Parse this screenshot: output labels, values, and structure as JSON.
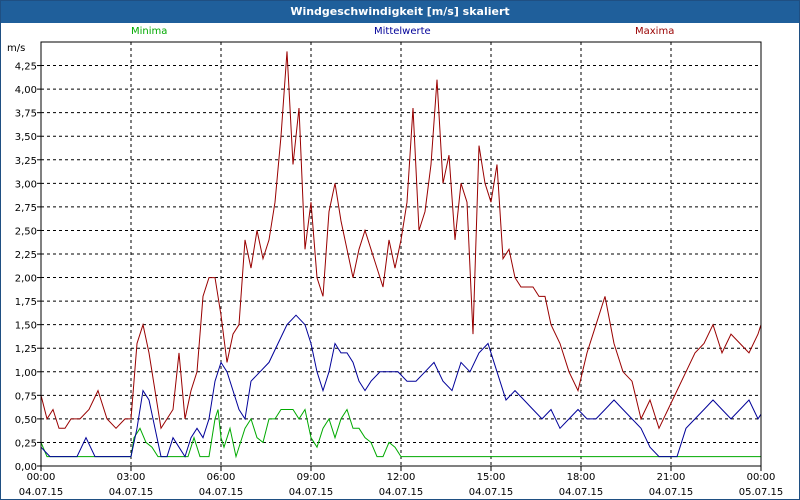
{
  "window": {
    "title": "Windgeschwindigkeit [m/s] skaliert"
  },
  "chart_data": {
    "type": "line",
    "title": "Windgeschwindigkeit [m/s] skaliert",
    "ylabel": "m/s",
    "ylim": [
      0,
      4.5
    ],
    "xlim": [
      0,
      24
    ],
    "yticks": [
      "0,00",
      "0,25",
      "0,50",
      "0,75",
      "1,00",
      "1,25",
      "1,50",
      "1,75",
      "2,00",
      "2,25",
      "2,50",
      "2,75",
      "3,00",
      "3,25",
      "3,50",
      "3,75",
      "4,00",
      "4,25"
    ],
    "xticks": [
      {
        "time": "00:00",
        "date": "04.07.15"
      },
      {
        "time": "03:00",
        "date": "04.07.15"
      },
      {
        "time": "06:00",
        "date": "04.07.15"
      },
      {
        "time": "09:00",
        "date": "04.07.15"
      },
      {
        "time": "12:00",
        "date": "04.07.15"
      },
      {
        "time": "15:00",
        "date": "04.07.15"
      },
      {
        "time": "18:00",
        "date": "04.07.15"
      },
      {
        "time": "21:00",
        "date": "04.07.15"
      },
      {
        "time": "00:00",
        "date": "05.07.15"
      }
    ],
    "grid": true,
    "legend_position": "top",
    "series": [
      {
        "name": "Minima",
        "color": "#00aa00",
        "x": [
          0,
          0.2,
          0.4,
          0.6,
          0.8,
          1,
          1.4,
          1.8,
          2,
          2.2,
          2.4,
          2.6,
          3,
          3.1,
          3.3,
          3.5,
          3.7,
          3.9,
          4.1,
          4.3,
          4.6,
          4.9,
          5.1,
          5.3,
          5.6,
          5.8,
          5.9,
          6,
          6.1,
          6.3,
          6.5,
          6.8,
          7,
          7.2,
          7.4,
          7.6,
          7.8,
          8,
          8.2,
          8.4,
          8.6,
          8.8,
          9,
          9.2,
          9.4,
          9.6,
          9.8,
          10,
          10.2,
          10.4,
          10.6,
          10.8,
          11,
          11.2,
          11.4,
          11.6,
          11.8,
          12,
          12.5,
          13,
          13.5,
          14,
          14.5,
          15,
          15.5,
          16,
          16.5,
          17,
          17.5,
          18,
          18.5,
          19,
          19.5,
          20,
          20.5,
          21,
          21.5,
          22,
          22.5,
          23,
          23.5,
          24
        ],
        "y": [
          0.25,
          0.1,
          0.1,
          0.1,
          0.1,
          0.1,
          0.1,
          0.1,
          0.1,
          0.1,
          0.1,
          0.1,
          0.1,
          0.3,
          0.4,
          0.25,
          0.2,
          0.1,
          0.1,
          0.1,
          0.1,
          0.1,
          0.3,
          0.1,
          0.1,
          0.5,
          0.6,
          0.3,
          0.2,
          0.4,
          0.1,
          0.4,
          0.5,
          0.3,
          0.25,
          0.5,
          0.5,
          0.6,
          0.6,
          0.6,
          0.5,
          0.6,
          0.3,
          0.2,
          0.4,
          0.5,
          0.3,
          0.5,
          0.6,
          0.4,
          0.4,
          0.3,
          0.25,
          0.1,
          0.1,
          0.25,
          0.2,
          0.1,
          0.1,
          0.1,
          0.1,
          0.1,
          0.1,
          0.1,
          0.1,
          0.1,
          0.1,
          0.1,
          0.1,
          0.1,
          0.1,
          0.1,
          0.1,
          0.1,
          0.1,
          0.1,
          0.1,
          0.1,
          0.1,
          0.1,
          0.1,
          0.1
        ]
      },
      {
        "name": "Mittelwerte",
        "color": "#000099",
        "x": [
          0,
          0.3,
          0.6,
          0.9,
          1.2,
          1.5,
          1.8,
          2.1,
          2.4,
          2.7,
          3,
          3.2,
          3.4,
          3.6,
          3.8,
          4,
          4.2,
          4.4,
          4.6,
          4.8,
          5,
          5.2,
          5.4,
          5.6,
          5.8,
          6,
          6.2,
          6.4,
          6.6,
          6.8,
          7,
          7.3,
          7.6,
          7.9,
          8.2,
          8.5,
          8.8,
          9,
          9.2,
          9.4,
          9.6,
          9.8,
          10,
          10.2,
          10.4,
          10.6,
          10.8,
          11,
          11.3,
          11.6,
          11.9,
          12.2,
          12.5,
          12.8,
          13.1,
          13.4,
          13.7,
          14,
          14.3,
          14.6,
          14.9,
          15.2,
          15.5,
          15.8,
          16.1,
          16.4,
          16.7,
          17,
          17.3,
          17.6,
          17.9,
          18.2,
          18.5,
          18.8,
          19.1,
          19.4,
          19.7,
          20,
          20.3,
          20.6,
          20.9,
          21.2,
          21.5,
          21.8,
          22.1,
          22.4,
          22.7,
          23,
          23.3,
          23.6,
          23.9,
          24
        ],
        "y": [
          0.2,
          0.1,
          0.1,
          0.1,
          0.1,
          0.3,
          0.1,
          0.1,
          0.1,
          0.1,
          0.1,
          0.4,
          0.8,
          0.7,
          0.4,
          0.1,
          0.1,
          0.3,
          0.2,
          0.1,
          0.3,
          0.4,
          0.3,
          0.5,
          0.9,
          1.1,
          1.0,
          0.8,
          0.6,
          0.5,
          0.9,
          1.0,
          1.1,
          1.3,
          1.5,
          1.6,
          1.5,
          1.3,
          1.0,
          0.8,
          1.0,
          1.3,
          1.2,
          1.2,
          1.1,
          0.9,
          0.8,
          0.9,
          1.0,
          1.0,
          1.0,
          0.9,
          0.9,
          1.0,
          1.1,
          0.9,
          0.8,
          1.1,
          1.0,
          1.2,
          1.3,
          1.0,
          0.7,
          0.8,
          0.7,
          0.6,
          0.5,
          0.6,
          0.4,
          0.5,
          0.6,
          0.5,
          0.5,
          0.6,
          0.7,
          0.6,
          0.5,
          0.4,
          0.2,
          0.1,
          0.1,
          0.1,
          0.4,
          0.5,
          0.6,
          0.7,
          0.6,
          0.5,
          0.6,
          0.7,
          0.5,
          0.55
        ]
      },
      {
        "name": "Maxima",
        "color": "#990000",
        "x": [
          0,
          0.2,
          0.4,
          0.6,
          0.8,
          1,
          1.3,
          1.6,
          1.9,
          2.2,
          2.5,
          2.8,
          3,
          3.2,
          3.4,
          3.6,
          3.8,
          4,
          4.2,
          4.4,
          4.6,
          4.8,
          5,
          5.2,
          5.4,
          5.6,
          5.8,
          6,
          6.2,
          6.4,
          6.6,
          6.8,
          7,
          7.2,
          7.4,
          7.6,
          7.8,
          8,
          8.2,
          8.4,
          8.6,
          8.8,
          9,
          9.2,
          9.4,
          9.6,
          9.8,
          10,
          10.2,
          10.4,
          10.6,
          10.8,
          11,
          11.2,
          11.4,
          11.6,
          11.8,
          12,
          12.2,
          12.4,
          12.6,
          12.8,
          13,
          13.2,
          13.4,
          13.6,
          13.8,
          14,
          14.2,
          14.4,
          14.6,
          14.8,
          15,
          15.2,
          15.4,
          15.6,
          15.8,
          16,
          16.2,
          16.4,
          16.6,
          16.8,
          17,
          17.3,
          17.6,
          17.9,
          18.2,
          18.5,
          18.8,
          19.1,
          19.4,
          19.7,
          20,
          20.3,
          20.6,
          20.9,
          21.2,
          21.5,
          21.8,
          22.1,
          22.4,
          22.7,
          23,
          23.3,
          23.6,
          23.9,
          24
        ],
        "y": [
          0.75,
          0.5,
          0.6,
          0.4,
          0.4,
          0.5,
          0.5,
          0.6,
          0.8,
          0.5,
          0.4,
          0.5,
          0.5,
          1.3,
          1.5,
          1.2,
          0.8,
          0.4,
          0.5,
          0.6,
          1.2,
          0.5,
          0.8,
          1.0,
          1.8,
          2.0,
          2.0,
          1.6,
          1.1,
          1.4,
          1.5,
          2.4,
          2.1,
          2.5,
          2.2,
          2.4,
          2.8,
          3.5,
          4.4,
          3.2,
          3.8,
          2.3,
          2.8,
          2.0,
          1.8,
          2.7,
          3.0,
          2.6,
          2.3,
          2.0,
          2.3,
          2.5,
          2.3,
          2.1,
          1.9,
          2.4,
          2.1,
          2.4,
          2.8,
          3.8,
          2.5,
          2.7,
          3.2,
          4.1,
          3.0,
          3.3,
          2.4,
          3.0,
          2.8,
          1.4,
          3.4,
          3.0,
          2.8,
          3.2,
          2.2,
          2.3,
          2.0,
          1.9,
          1.9,
          1.9,
          1.8,
          1.8,
          1.5,
          1.3,
          1.0,
          0.8,
          1.2,
          1.5,
          1.8,
          1.3,
          1.0,
          0.9,
          0.5,
          0.7,
          0.4,
          0.6,
          0.8,
          1.0,
          1.2,
          1.3,
          1.5,
          1.2,
          1.4,
          1.3,
          1.2,
          1.4,
          1.5
        ]
      }
    ]
  }
}
